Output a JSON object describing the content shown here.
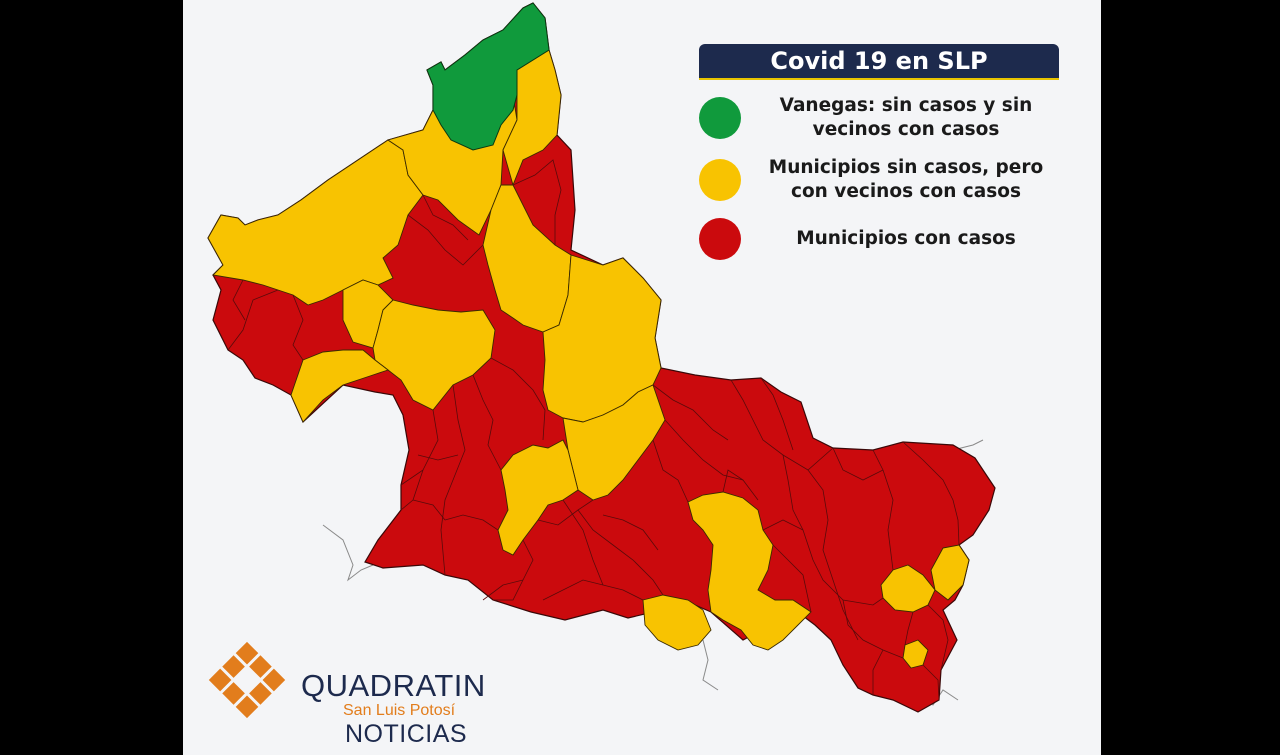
{
  "colors": {
    "green": "#109a3c",
    "yellow": "#f8c301",
    "red": "#cb0a0d",
    "title_bg": "#1d2a4d",
    "brand_orange": "#e27d1c"
  },
  "legend": {
    "title": "Covid 19 en SLP",
    "items": [
      {
        "color": "green",
        "label": "Vanegas: sin casos y sin vecinos con casos"
      },
      {
        "color": "yellow",
        "label": "Municipios sin casos, pero con vecinos con casos"
      },
      {
        "color": "red",
        "label": "Municipios con casos"
      }
    ]
  },
  "logo": {
    "name": "QUADRATIN",
    "region": "San Luis Potosí",
    "subtitle": "NOTICIAS"
  }
}
